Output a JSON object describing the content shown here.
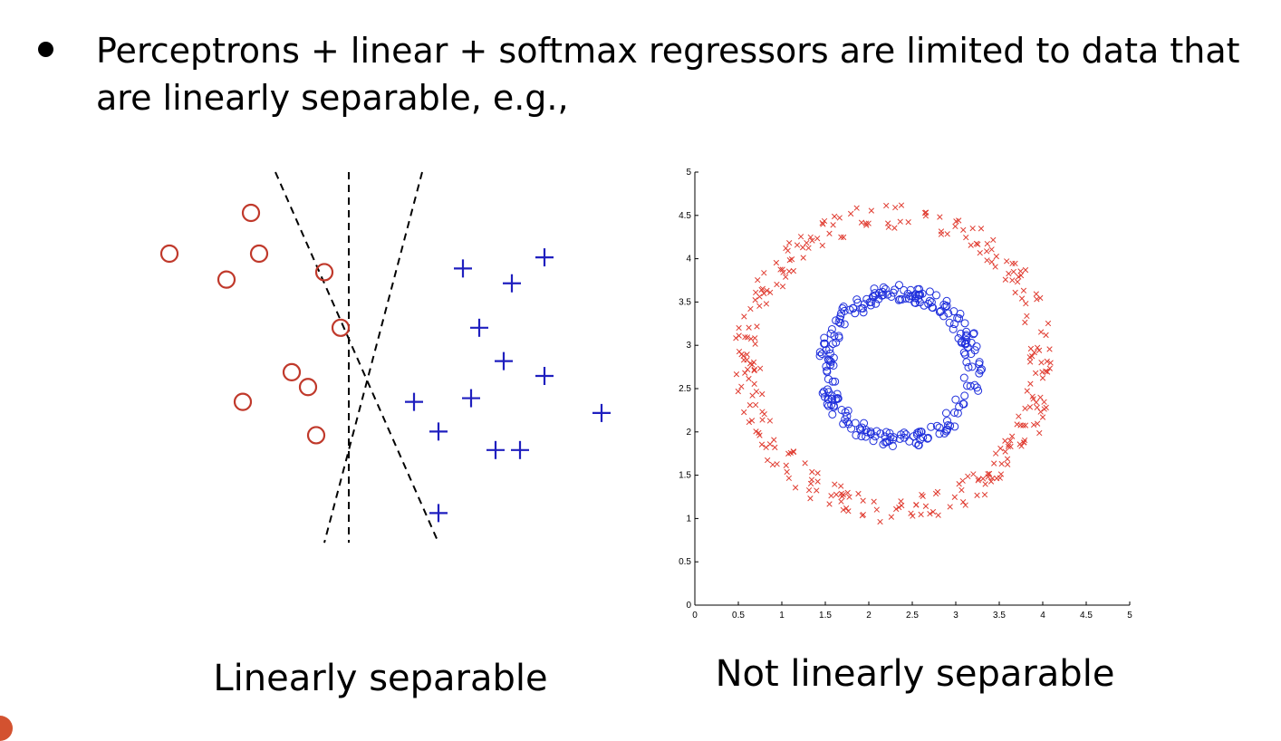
{
  "slide": {
    "bullet_text": "Perceptrons + linear + softmax regressors are limited to data that are linearly separable, e.g.,",
    "caption_left": "Linearly separable",
    "caption_right": "Not linearly separable"
  },
  "colors": {
    "circle_class": "#c0392b",
    "plus_class": "#1f1fbf",
    "boundary": "#000000",
    "outer_ring": "#e03c31",
    "inner_ring": "#1f2fdc",
    "corner_accent": "#d35230"
  },
  "chart_data": [
    {
      "type": "scatter",
      "title": "",
      "xlabel": "",
      "ylabel": "",
      "axes": "none",
      "grid": false,
      "series": [
        {
          "marker": "circle",
          "points": [
            [
              0.3,
              8.8
            ],
            [
              1.3,
              9.9
            ],
            [
              1.4,
              8.8
            ],
            [
              1.0,
              8.1
            ],
            [
              2.2,
              8.3
            ],
            [
              2.4,
              6.8
            ],
            [
              1.8,
              5.6
            ],
            [
              2.0,
              5.2
            ],
            [
              1.2,
              4.8
            ],
            [
              2.1,
              3.9
            ]
          ]
        },
        {
          "marker": "plus",
          "points": [
            [
              3.9,
              8.4
            ],
            [
              4.5,
              8.0
            ],
            [
              4.9,
              8.7
            ],
            [
              4.1,
              6.8
            ],
            [
              4.4,
              5.9
            ],
            [
              4.9,
              5.5
            ],
            [
              3.3,
              4.8
            ],
            [
              4.0,
              4.9
            ],
            [
              3.6,
              4.0
            ],
            [
              5.6,
              4.5
            ],
            [
              4.3,
              3.5
            ],
            [
              4.6,
              3.5
            ],
            [
              3.6,
              1.8
            ]
          ]
        }
      ],
      "boundaries": [
        {
          "style": "dashed",
          "from": [
            1.6,
            11.0
          ],
          "to": [
            3.6,
            1.0
          ]
        },
        {
          "style": "dashed",
          "from": [
            2.5,
            11.0
          ],
          "to": [
            2.5,
            1.0
          ]
        },
        {
          "style": "dashed",
          "from": [
            3.4,
            11.0
          ],
          "to": [
            2.2,
            1.0
          ]
        }
      ],
      "xlim": [
        0,
        6
      ],
      "ylim": [
        0,
        11
      ]
    },
    {
      "type": "scatter",
      "title": "",
      "xlabel": "",
      "ylabel": "",
      "xlim": [
        0,
        5
      ],
      "ylim": [
        0,
        5
      ],
      "xticks": [
        "0",
        "0.5",
        "1",
        "1.5",
        "2",
        "2.5",
        "3",
        "3.5",
        "4",
        "4.5",
        "5"
      ],
      "yticks": [
        "0",
        "0.5",
        "1",
        "1.5",
        "2",
        "2.5",
        "3",
        "3.5",
        "4",
        "4.5",
        "5"
      ],
      "grid": false,
      "series": [
        {
          "marker": "x",
          "shape": "ring",
          "center": [
            2.3,
            2.8
          ],
          "radius_range": [
            1.55,
            1.85
          ],
          "count": 300
        },
        {
          "marker": "o",
          "shape": "ring",
          "center": [
            2.35,
            2.75
          ],
          "radius_range": [
            0.75,
            0.95
          ],
          "count": 250
        }
      ]
    }
  ]
}
